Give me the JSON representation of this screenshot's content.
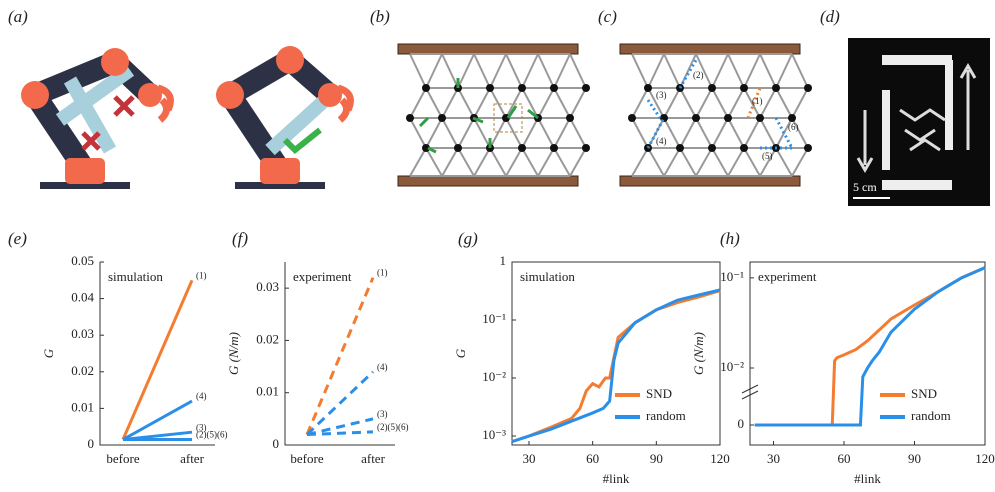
{
  "panel_labels": [
    "(a)",
    "(b)",
    "(c)",
    "(d)",
    "(e)",
    "(f)",
    "(g)",
    "(h)"
  ],
  "link_labels": [
    "(1)",
    "(2)",
    "(3)",
    "(4)",
    "(5)",
    "(6)"
  ],
  "scale_bar": "5 cm",
  "chart_data": [
    {
      "type": "line",
      "text": "simulation",
      "ylabel": "G",
      "categories": [
        "before",
        "after"
      ],
      "ylim": [
        0,
        0.05
      ],
      "yticks": [
        0,
        0.01,
        0.02,
        0.03,
        0.04,
        0.05
      ],
      "dashed": false,
      "series": [
        {
          "name": "(1)",
          "color": "#f47c30",
          "values": [
            0.0015,
            0.045
          ]
        },
        {
          "name": "(4)",
          "color": "#2a8fe8",
          "values": [
            0.0015,
            0.012
          ]
        },
        {
          "name": "(3)",
          "color": "#2a8fe8",
          "values": [
            0.0015,
            0.0035
          ]
        },
        {
          "name": "(2)(5)(6)",
          "color": "#2a8fe8",
          "values": [
            0.0015,
            0.0015
          ]
        }
      ]
    },
    {
      "type": "line",
      "text": "experiment",
      "ylabel": "G (N/m)",
      "categories": [
        "before",
        "after"
      ],
      "ylim": [
        0,
        0.035
      ],
      "yticks": [
        0,
        0.01,
        0.02,
        0.03
      ],
      "dashed": true,
      "series": [
        {
          "name": "(1)",
          "color": "#f47c30",
          "values": [
            0.002,
            0.032
          ]
        },
        {
          "name": "(4)",
          "color": "#2a8fe8",
          "values": [
            0.002,
            0.014
          ]
        },
        {
          "name": "(3)",
          "color": "#2a8fe8",
          "values": [
            0.002,
            0.005
          ]
        },
        {
          "name": "(2)(5)(6)",
          "color": "#2a8fe8",
          "values": [
            0.002,
            0.0025
          ]
        }
      ]
    },
    {
      "type": "line",
      "text": "simulation",
      "ylabel": "G",
      "xlabel": "#link",
      "log": true,
      "xlim": [
        22,
        120
      ],
      "xticks": [
        30,
        60,
        90,
        120
      ],
      "ylim": [
        0.0007,
        1
      ],
      "yticks": [
        {
          "value": 0.001,
          "label": "10⁻³"
        },
        {
          "value": 0.01,
          "label": "10⁻²"
        },
        {
          "value": 0.1,
          "label": "10⁻¹"
        },
        1
      ],
      "series": [
        {
          "name": "SND",
          "color": "#f47c30",
          "x": [
            22,
            30,
            40,
            50,
            54,
            57,
            60,
            63,
            66,
            68,
            72,
            80,
            90,
            100,
            110,
            120
          ],
          "values": [
            0.0008,
            0.001,
            0.0014,
            0.002,
            0.003,
            0.006,
            0.008,
            0.007,
            0.01,
            0.01,
            0.05,
            0.09,
            0.15,
            0.2,
            0.25,
            0.32
          ]
        },
        {
          "name": "random",
          "color": "#2a8fe8",
          "x": [
            22,
            30,
            40,
            50,
            60,
            65,
            68,
            70,
            72,
            76,
            80,
            90,
            100,
            110,
            120
          ],
          "values": [
            0.0008,
            0.001,
            0.0013,
            0.0018,
            0.0025,
            0.003,
            0.004,
            0.02,
            0.04,
            0.06,
            0.09,
            0.15,
            0.22,
            0.27,
            0.33
          ]
        }
      ]
    },
    {
      "type": "line",
      "text": "experiment",
      "ylabel": "G (N/m)",
      "xlabel": "#link",
      "log": true,
      "xlim": [
        20,
        120
      ],
      "xticks": [
        30,
        60,
        90,
        120
      ],
      "ylim": [
        0,
        0.15
      ],
      "yticks": [
        0,
        {
          "value": 0.01,
          "label": "10⁻²"
        },
        {
          "value": 0.1,
          "label": "10⁻¹"
        }
      ],
      "series": [
        {
          "name": "SND",
          "color": "#f47c30",
          "x": [
            22,
            55,
            56,
            57,
            60,
            65,
            70,
            80,
            90,
            100,
            110,
            120
          ],
          "values": [
            0,
            0,
            0.012,
            0.013,
            0.014,
            0.016,
            0.02,
            0.035,
            0.05,
            0.07,
            0.1,
            0.13
          ]
        },
        {
          "name": "random",
          "color": "#2a8fe8",
          "x": [
            22,
            67,
            68,
            70,
            72,
            75,
            80,
            90,
            100,
            110,
            120
          ],
          "values": [
            0,
            0,
            0.008,
            0.01,
            0.012,
            0.015,
            0.025,
            0.045,
            0.07,
            0.1,
            0.13
          ]
        }
      ]
    }
  ]
}
